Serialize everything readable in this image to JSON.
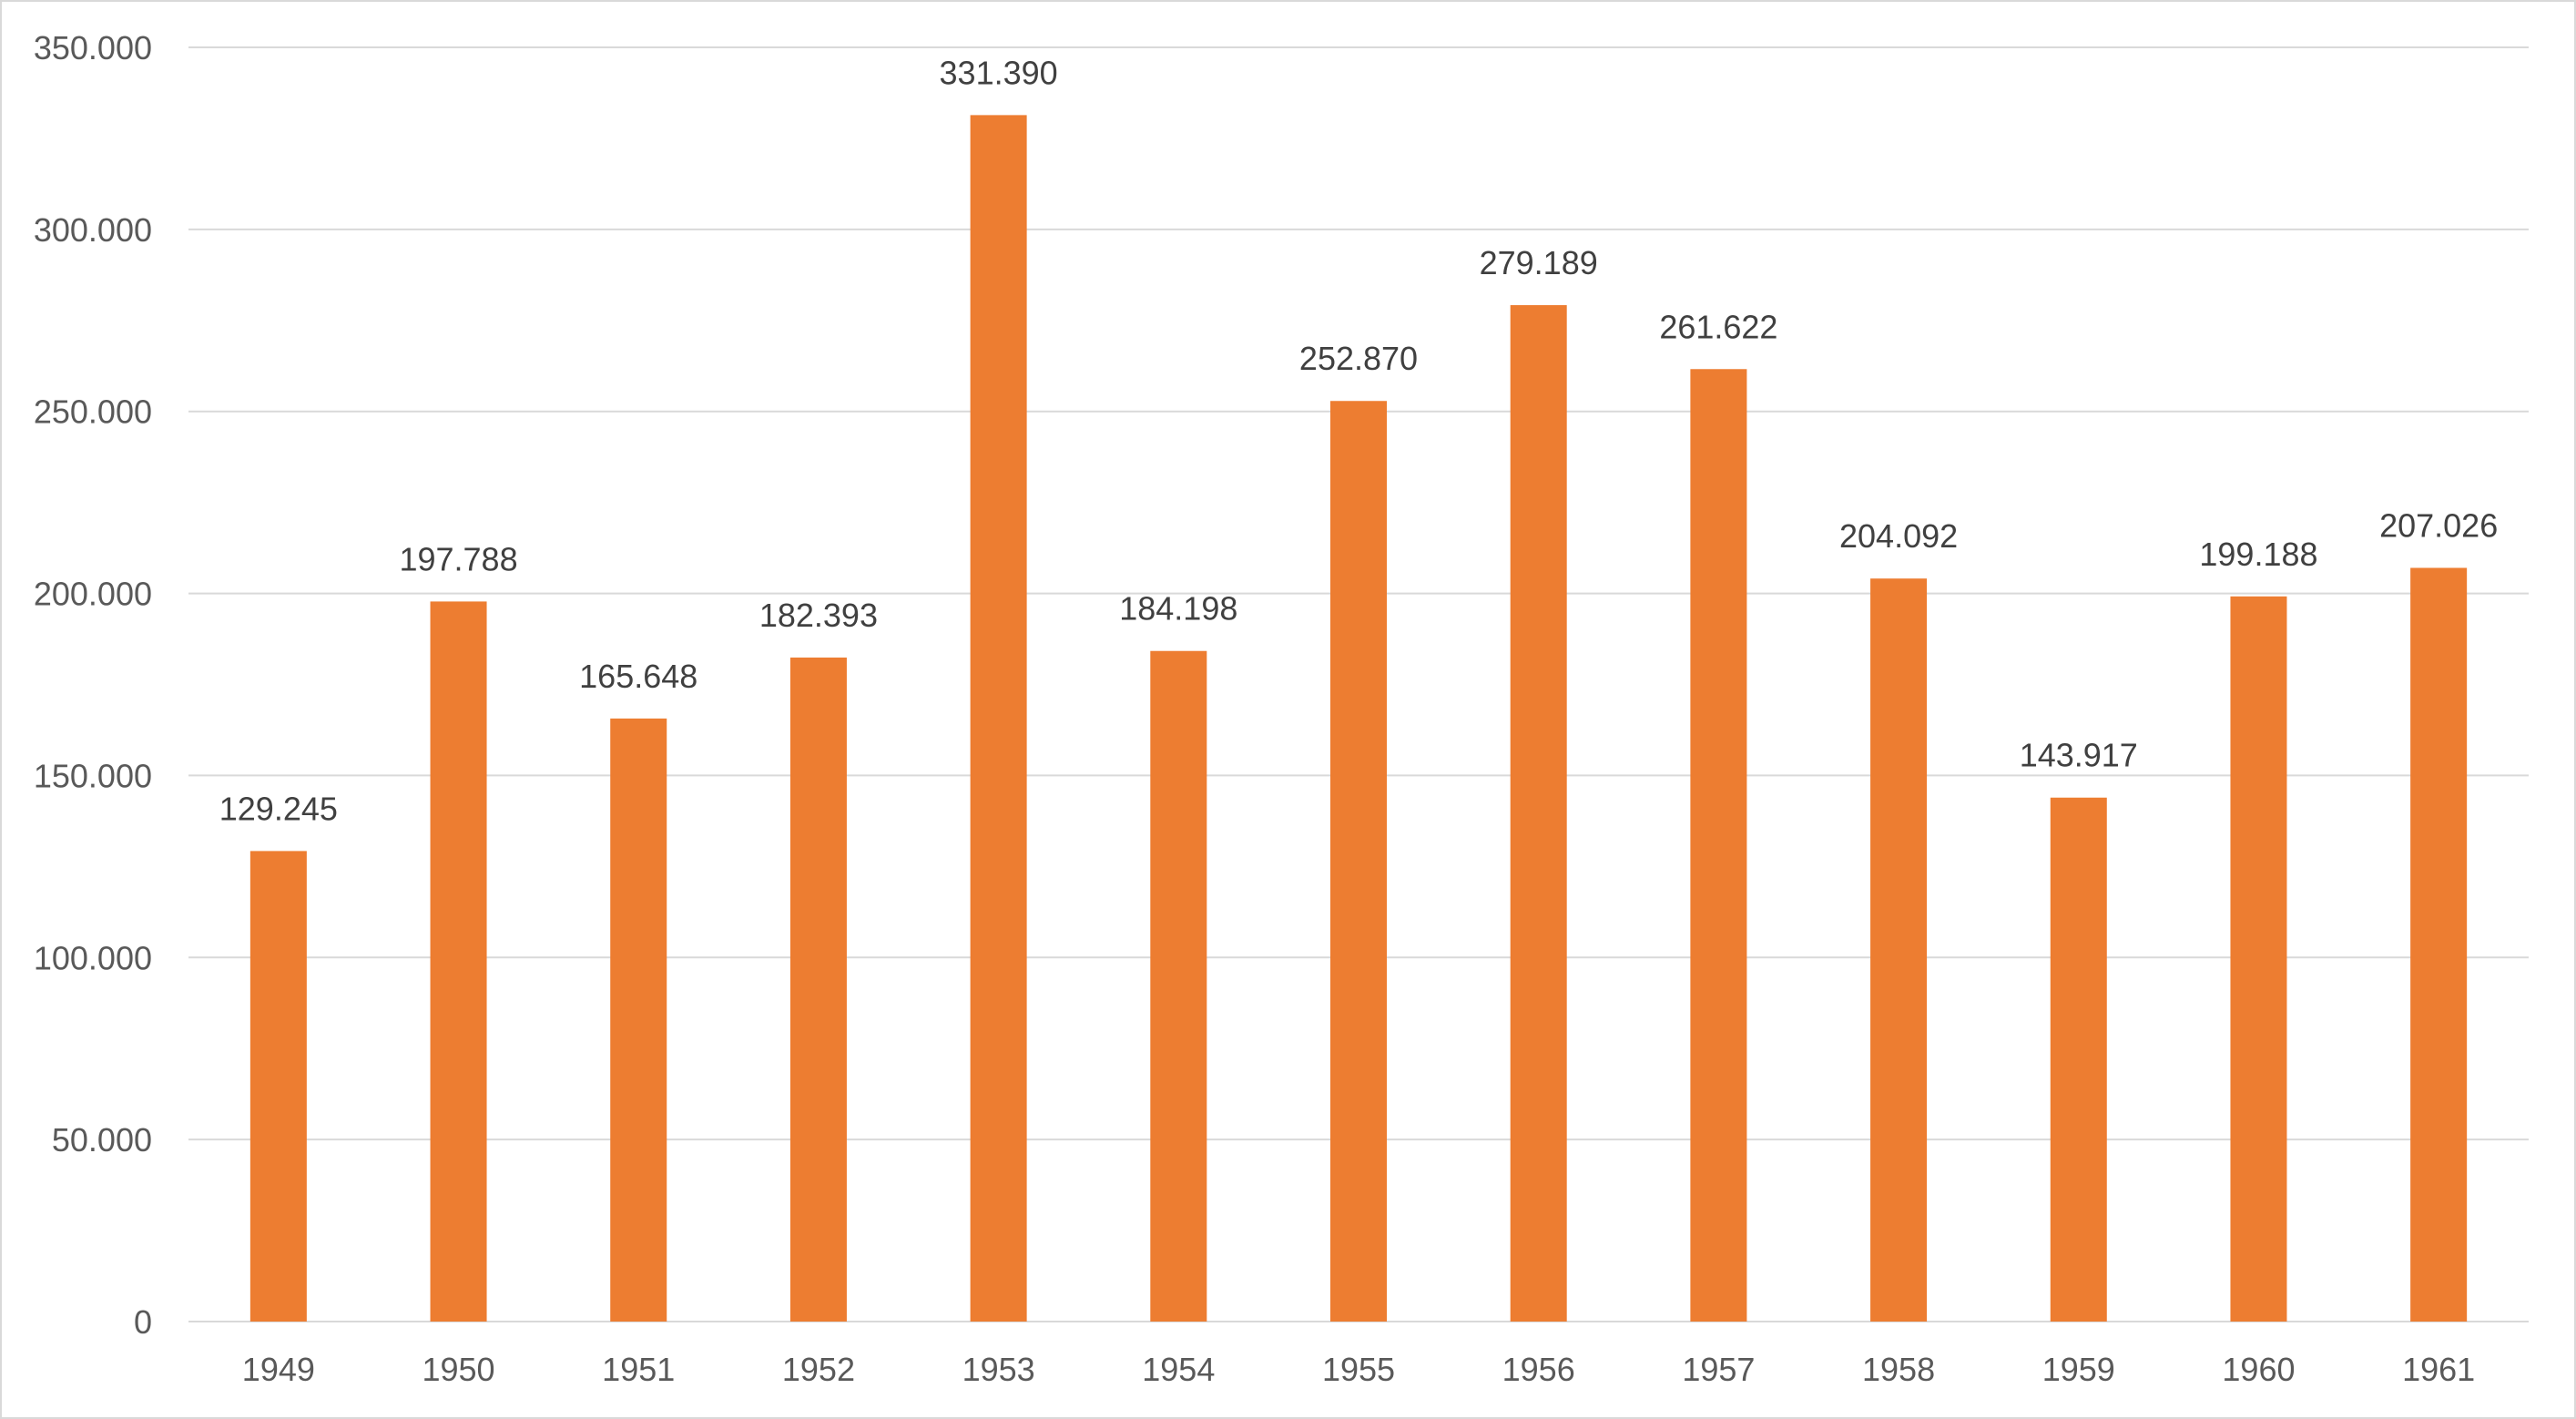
{
  "chart_data": {
    "type": "bar",
    "title": "",
    "xlabel": "",
    "ylabel": "",
    "categories": [
      "1949",
      "1950",
      "1951",
      "1952",
      "1953",
      "1954",
      "1955",
      "1956",
      "1957",
      "1958",
      "1959",
      "1960",
      "1961"
    ],
    "values": [
      129245,
      197788,
      165648,
      182393,
      331390,
      184198,
      252870,
      279189,
      261622,
      204092,
      143917,
      199188,
      207026
    ],
    "data_labels": [
      "129.245",
      "197.788",
      "165.648",
      "182.393",
      "331.390",
      "184.198",
      "252.870",
      "279.189",
      "261.622",
      "204.092",
      "143.917",
      "199.188",
      "207.026"
    ],
    "ylim": [
      0,
      350000
    ],
    "yticks": [
      0,
      50000,
      100000,
      150000,
      200000,
      250000,
      300000,
      350000
    ],
    "ytick_labels": [
      "0",
      "50.000",
      "100.000",
      "150.000",
      "200.000",
      "250.000",
      "300.000",
      "350.000"
    ],
    "grid": true,
    "legend": "none",
    "colors": {
      "bar": "#ED7D31",
      "gridline": "#D9D9D9",
      "axis_text": "#595959",
      "data_label_text": "#404040",
      "border": "#D9D9D9"
    }
  }
}
